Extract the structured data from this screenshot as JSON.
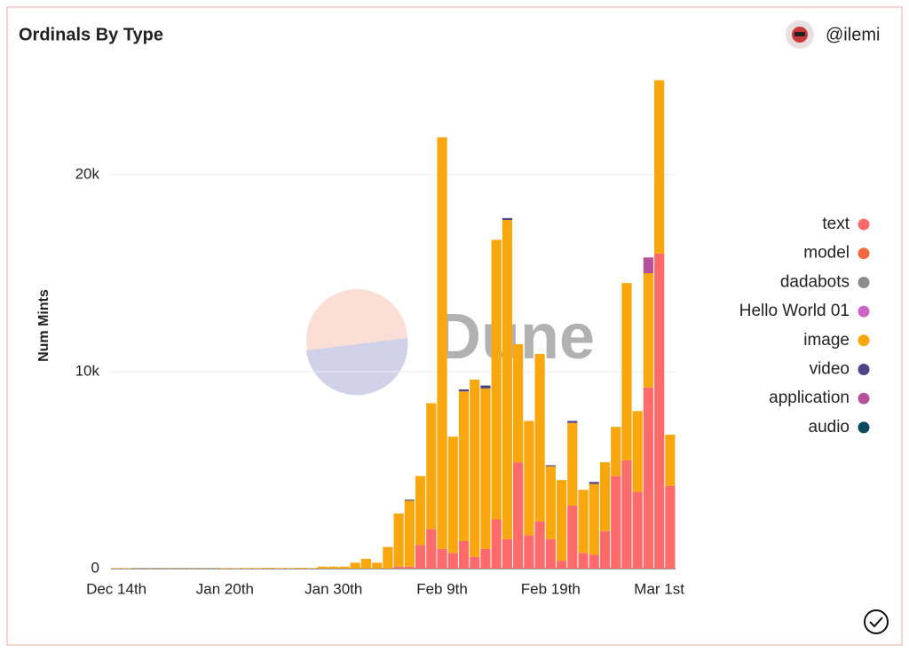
{
  "chart_data": {
    "type": "bar",
    "stacked": true,
    "title": "Ordinals By Type",
    "author": "@ilemi",
    "watermark": "Dune",
    "y_label": "Num Mints",
    "categories": [
      "Dec 14th",
      null,
      null,
      null,
      null,
      null,
      null,
      null,
      null,
      null,
      "Jan 20th",
      null,
      null,
      null,
      null,
      null,
      null,
      null,
      null,
      null,
      "Jan 30th",
      null,
      null,
      null,
      null,
      null,
      null,
      null,
      null,
      null,
      "Feb 9th",
      null,
      null,
      null,
      null,
      null,
      null,
      null,
      null,
      null,
      "Feb 19th",
      null,
      null,
      null,
      null,
      null,
      null,
      null,
      null,
      null,
      "Mar 1st",
      null
    ],
    "ylim": [
      0,
      25000
    ],
    "yticks": [
      0,
      {
        "value": 10000,
        "label": "10k"
      },
      {
        "value": 20000,
        "label": "20k"
      }
    ],
    "grid": true,
    "legend": "right",
    "series": [
      {
        "name": "text",
        "color": "#ff6b6b",
        "values": [
          0,
          0,
          0,
          0,
          0,
          0,
          0,
          0,
          0,
          0,
          0,
          0,
          0,
          0,
          0,
          0,
          0,
          0,
          0,
          0,
          0,
          0,
          0,
          0,
          0,
          0,
          100,
          100,
          1200,
          2000,
          1000,
          800,
          1400,
          600,
          1000,
          2500,
          1500,
          5400,
          1700,
          2400,
          1500,
          400,
          3200,
          800,
          700,
          1900,
          4700,
          5500,
          3900,
          9200,
          16000,
          4200
        ]
      },
      {
        "name": "model",
        "color": "#f5693f",
        "values": [
          0,
          0,
          0,
          0,
          0,
          0,
          0,
          0,
          0,
          0,
          0,
          0,
          0,
          0,
          0,
          0,
          0,
          0,
          0,
          0,
          0,
          0,
          0,
          0,
          0,
          0,
          0,
          0,
          0,
          0,
          0,
          0,
          0,
          0,
          0,
          0,
          0,
          0,
          0,
          0,
          0,
          0,
          0,
          0,
          0,
          0,
          0,
          0,
          0,
          0,
          0,
          0
        ]
      },
      {
        "name": "dadabots",
        "color": "#8c8c8c",
        "values": [
          0,
          0,
          0,
          0,
          0,
          0,
          0,
          0,
          0,
          0,
          0,
          0,
          0,
          0,
          0,
          0,
          0,
          0,
          0,
          0,
          0,
          0,
          0,
          0,
          0,
          0,
          0,
          0,
          0,
          0,
          0,
          0,
          0,
          0,
          0,
          0,
          0,
          0,
          0,
          0,
          0,
          0,
          0,
          0,
          0,
          0,
          0,
          0,
          0,
          0,
          0,
          0
        ]
      },
      {
        "name": "Hello World 01",
        "color": "#cc66c4",
        "values": [
          0,
          0,
          0,
          0,
          0,
          0,
          0,
          0,
          0,
          0,
          0,
          0,
          0,
          0,
          0,
          0,
          0,
          0,
          0,
          0,
          0,
          0,
          0,
          0,
          0,
          0,
          0,
          0,
          0,
          0,
          0,
          0,
          0,
          0,
          0,
          0,
          0,
          0,
          0,
          0,
          0,
          0,
          0,
          0,
          0,
          0,
          0,
          0,
          0,
          0,
          0,
          0
        ]
      },
      {
        "name": "image",
        "color": "#f8a70f",
        "values": [
          20,
          20,
          10,
          10,
          10,
          10,
          10,
          10,
          10,
          10,
          30,
          20,
          30,
          30,
          40,
          30,
          30,
          40,
          30,
          100,
          100,
          100,
          300,
          500,
          300,
          1100,
          2700,
          3350,
          3500,
          6400,
          20900,
          5900,
          7600,
          9000,
          8150,
          14200,
          16200,
          6000,
          5800,
          8500,
          3700,
          4100,
          4200,
          3200,
          3600,
          3500,
          2500,
          9000,
          4100,
          5800,
          8800,
          2600
        ]
      },
      {
        "name": "video",
        "color": "#4e4587",
        "values": [
          0,
          0,
          0,
          0,
          0,
          0,
          0,
          0,
          0,
          0,
          0,
          0,
          0,
          0,
          0,
          0,
          0,
          0,
          0,
          0,
          0,
          0,
          0,
          0,
          0,
          0,
          0,
          50,
          0,
          0,
          0,
          0,
          100,
          0,
          150,
          0,
          100,
          0,
          0,
          0,
          50,
          0,
          100,
          0,
          100,
          0,
          0,
          0,
          0,
          0,
          0,
          0
        ]
      },
      {
        "name": "application",
        "color": "#b4519a",
        "values": [
          0,
          0,
          0,
          0,
          0,
          0,
          0,
          0,
          0,
          0,
          0,
          0,
          0,
          0,
          0,
          0,
          0,
          0,
          0,
          0,
          0,
          0,
          0,
          0,
          0,
          0,
          0,
          0,
          0,
          0,
          0,
          0,
          0,
          0,
          0,
          0,
          0,
          0,
          0,
          0,
          0,
          0,
          0,
          0,
          0,
          0,
          0,
          0,
          0,
          800,
          0,
          0
        ]
      },
      {
        "name": "audio",
        "color": "#0e4a5e",
        "values": [
          0,
          0,
          0,
          0,
          0,
          0,
          0,
          0,
          0,
          0,
          0,
          0,
          0,
          0,
          0,
          0,
          0,
          0,
          0,
          0,
          0,
          0,
          0,
          0,
          0,
          0,
          0,
          0,
          0,
          0,
          0,
          0,
          0,
          0,
          0,
          0,
          0,
          0,
          0,
          0,
          0,
          0,
          0,
          0,
          0,
          0,
          0,
          0,
          0,
          0,
          0,
          0
        ]
      }
    ]
  }
}
